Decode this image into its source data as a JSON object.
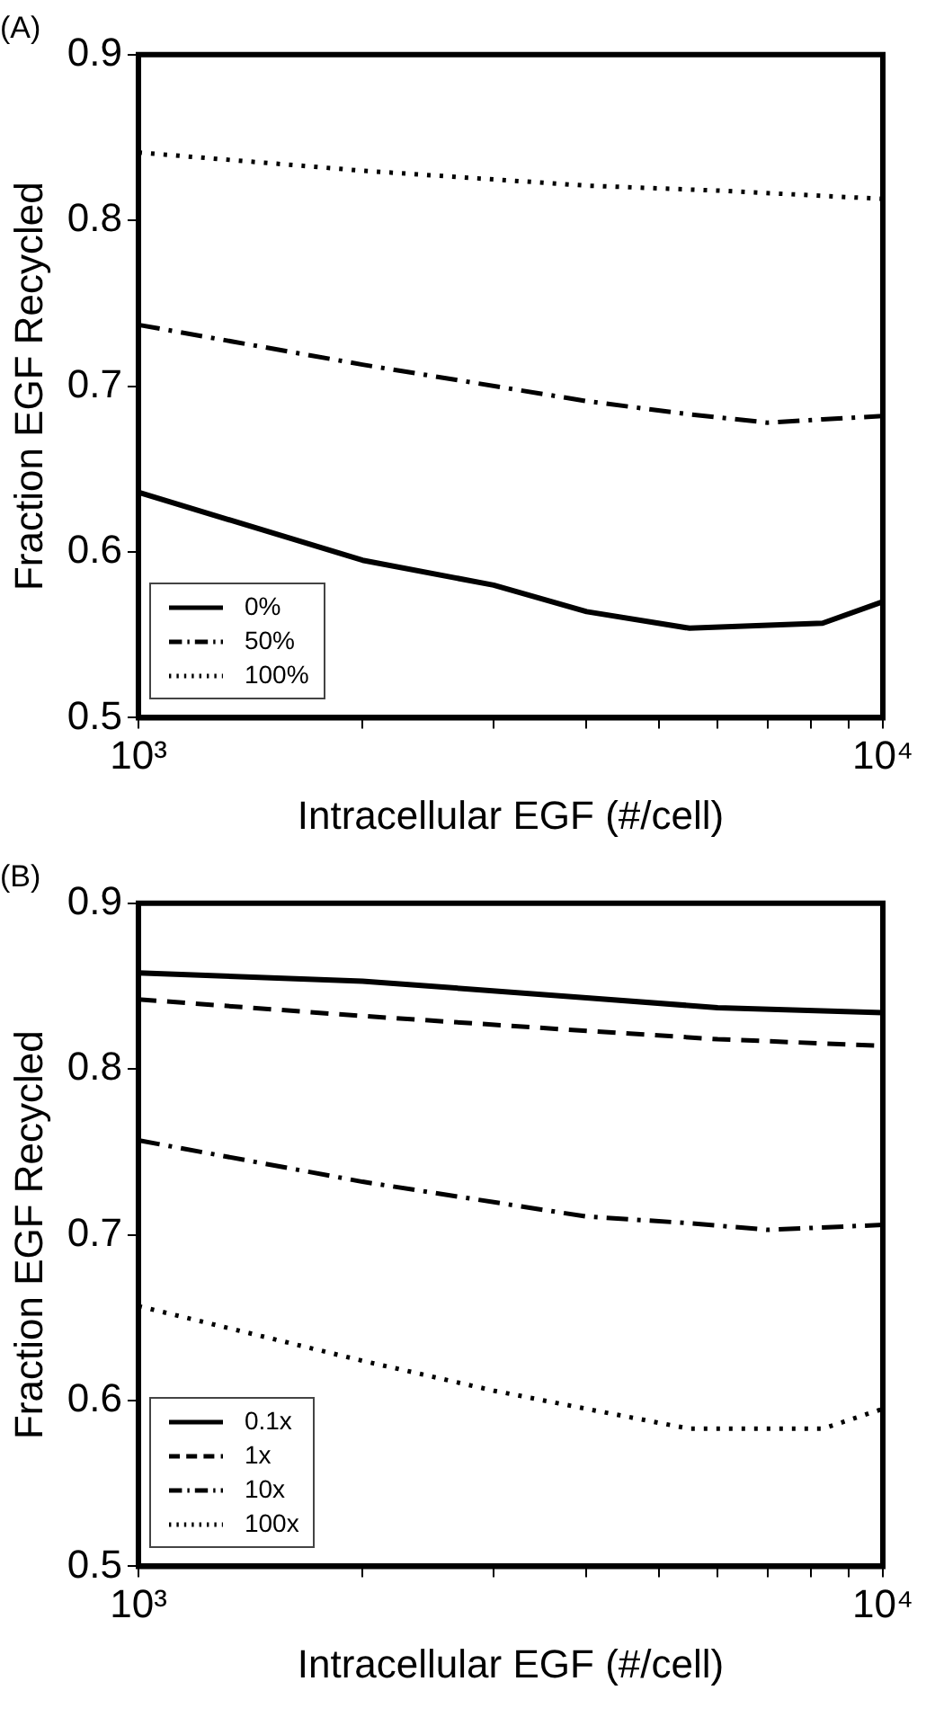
{
  "chart_data": [
    {
      "type": "line",
      "title": "(A)",
      "xlabel": "Intracellular EGF (#/cell)",
      "ylabel": "Fraction EGF Recycled",
      "log": "x",
      "grid": false,
      "legend": "bottom left",
      "marker": "none",
      "xlim": [
        1000,
        10000
      ],
      "ylim": [
        0.5,
        0.9
      ],
      "xticks": [
        {
          "value": 1000,
          "label": "10³"
        },
        {
          "value": 2000,
          "label": null
        },
        {
          "value": 3000,
          "label": null
        },
        {
          "value": 4000,
          "label": null
        },
        {
          "value": 5000,
          "label": null
        },
        {
          "value": 6000,
          "label": null
        },
        {
          "value": 7000,
          "label": null
        },
        {
          "value": 8000,
          "label": null
        },
        {
          "value": 9000,
          "label": null
        },
        {
          "value": 10000,
          "label": "10⁴"
        }
      ],
      "yticks": [
        0.5,
        0.6,
        0.7,
        0.8,
        0.9
      ],
      "series": [
        {
          "name": "0%",
          "color": "#000000",
          "line_style": "solid",
          "x": [
            1000,
            2000,
            3000,
            4000,
            5500,
            8300,
            10000
          ],
          "values": [
            0.636,
            0.595,
            0.58,
            0.564,
            0.554,
            0.557,
            0.57
          ]
        },
        {
          "name": "50%",
          "color": "#000000",
          "line_style": "dashdot",
          "x": [
            1000,
            2000,
            4000,
            5500,
            7000,
            8300,
            10000
          ],
          "values": [
            0.737,
            0.713,
            0.691,
            0.683,
            0.678,
            0.68,
            0.682
          ]
        },
        {
          "name": "100%",
          "color": "#000000",
          "line_style": "dotted",
          "x": [
            1000,
            2000,
            4000,
            6000,
            10000
          ],
          "values": [
            0.841,
            0.83,
            0.821,
            0.818,
            0.813
          ]
        }
      ]
    },
    {
      "type": "line",
      "title": "(B)",
      "xlabel": "Intracellular EGF (#/cell)",
      "ylabel": "Fraction EGF Recycled",
      "log": "x",
      "grid": false,
      "legend": "bottom left",
      "marker": "none",
      "xlim": [
        1000,
        10000
      ],
      "ylim": [
        0.5,
        0.9
      ],
      "xticks": [
        {
          "value": 1000,
          "label": "10³"
        },
        {
          "value": 2000,
          "label": null
        },
        {
          "value": 3000,
          "label": null
        },
        {
          "value": 4000,
          "label": null
        },
        {
          "value": 5000,
          "label": null
        },
        {
          "value": 6000,
          "label": null
        },
        {
          "value": 7000,
          "label": null
        },
        {
          "value": 8000,
          "label": null
        },
        {
          "value": 9000,
          "label": null
        },
        {
          "value": 10000,
          "label": "10⁴"
        }
      ],
      "yticks": [
        0.5,
        0.6,
        0.7,
        0.8,
        0.9
      ],
      "series": [
        {
          "name": "0.1x",
          "color": "#000000",
          "line_style": "solid",
          "x": [
            1000,
            2000,
            4000,
            6000,
            10000
          ],
          "values": [
            0.858,
            0.853,
            0.843,
            0.837,
            0.834
          ]
        },
        {
          "name": "1x",
          "color": "#000000",
          "line_style": "dashed",
          "x": [
            1000,
            2000,
            4000,
            6000,
            10000
          ],
          "values": [
            0.842,
            0.832,
            0.823,
            0.818,
            0.814
          ]
        },
        {
          "name": "10x",
          "color": "#000000",
          "line_style": "dashdot",
          "x": [
            1000,
            2000,
            4000,
            5500,
            7000,
            10000
          ],
          "values": [
            0.757,
            0.732,
            0.711,
            0.707,
            0.703,
            0.706
          ]
        },
        {
          "name": "100x",
          "color": "#000000",
          "line_style": "dotted",
          "x": [
            1000,
            2000,
            3000,
            4000,
            5500,
            8300,
            10000
          ],
          "values": [
            0.657,
            0.624,
            0.606,
            0.595,
            0.583,
            0.583,
            0.595
          ]
        }
      ]
    }
  ]
}
